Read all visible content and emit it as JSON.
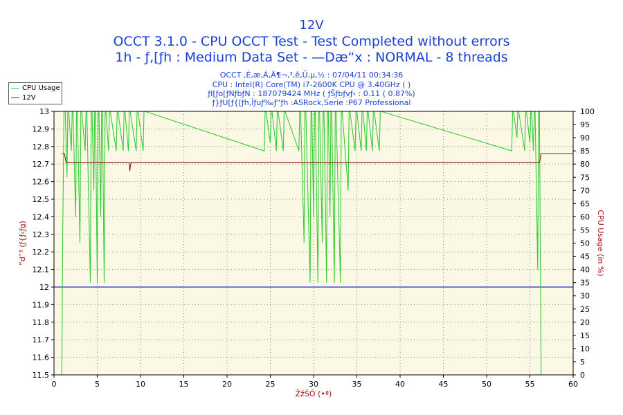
{
  "header": {
    "title": "12V",
    "line2": "OCCT 3.1.0 - CPU OCCT Test - Test Completed without errors",
    "line3": "1h - ƒ‚[ƒh : Medium Data Set - —Dæ“x : NORMAL - 8 threads",
    "sub1": "OCCT ‚É‚æ‚Á‚Ä¶¬‚³‚ê‚Ü‚µ‚½ : 07/04/11 00:34:36",
    "sub2": "CPU : Intel(R) Core(TM) i7-2600K CPU @ 3.40GHz (  )",
    "sub3": "ƒI[ƒo[ƒNƒbƒN : 187079424 MHz ( ƒŠƒbƒvƒ‹ : 0.11 ( 0.87%)",
    "sub4": "ƒ}ƒU[ƒ{[ƒh‚Ìƒuƒ‰ƒ“ƒh :ASRock,Serie :P67 Professional"
  },
  "legend": {
    "items": [
      {
        "label": "CPU Usage",
        "color": "#33cc33"
      },
      {
        "label": "12V",
        "color": "#8b1a1a"
      }
    ]
  },
  "colors": {
    "plot_bg": "#fbf8e6",
    "grid": "#7f9a5a",
    "title": "#1a3fd6",
    "axis_label": "#a01010",
    "cpu": "#33cc33",
    "volt": "#8b1a1a",
    "ref": "#1f2fd0"
  },
  "chart_data": {
    "type": "line",
    "title": "12V",
    "xlabel": "ŽžŠÔ (•ª)",
    "ylabel": "“dˆ³ (ƒ{ƒ‹ƒg)",
    "y2label": "CPU Usage (in %)",
    "xlim": [
      0,
      60
    ],
    "ylim": [
      11.5,
      13
    ],
    "y2lim": [
      0,
      100
    ],
    "x_ticks": [
      "0",
      "5",
      "10",
      "15",
      "20",
      "25",
      "30",
      "35",
      "40",
      "45",
      "50",
      "55",
      "60"
    ],
    "y_ticks": [
      "11.5",
      "11.6",
      "11.7",
      "11.8",
      "11.9",
      "12",
      "12.1",
      "12.2",
      "12.3",
      "12.4",
      "12.5",
      "12.6",
      "12.7",
      "12.8",
      "12.9",
      "13"
    ],
    "y2_ticks": [
      "0",
      "5",
      "10",
      "15",
      "20",
      "25",
      "30",
      "35",
      "40",
      "45",
      "50",
      "55",
      "60",
      "65",
      "70",
      "75",
      "80",
      "85",
      "90",
      "95",
      "100"
    ],
    "grid": true,
    "reference_line": 12,
    "series": [
      {
        "name": "CPU Usage",
        "axis": "right",
        "x": [
          0.9,
          1.0,
          1.15,
          1.3,
          1.5,
          1.6,
          1.7,
          2.0,
          2.1,
          2.2,
          2.5,
          2.6,
          2.7,
          3.0,
          3.1,
          3.2,
          3.6,
          3.7,
          3.8,
          4.2,
          4.3,
          4.4,
          4.6,
          4.7,
          4.8,
          5.0,
          5.1,
          5.2,
          5.4,
          5.5,
          5.6,
          5.8,
          5.9,
          6.0,
          6.3,
          6.4,
          6.5,
          7.2,
          7.3,
          7.4,
          8.0,
          8.1,
          8.2,
          8.6,
          8.7,
          8.8,
          9.5,
          9.6,
          9.7,
          10.3,
          10.4,
          10.5,
          24.3,
          24.4,
          24.5,
          25.0,
          25.1,
          25.2,
          25.7,
          25.8,
          25.9,
          26.5,
          26.6,
          26.7,
          28.3,
          28.4,
          28.5,
          28.9,
          29.0,
          29.1,
          29.6,
          29.7,
          29.8,
          30.0,
          30.1,
          30.2,
          30.5,
          30.6,
          30.7,
          31.0,
          31.1,
          31.2,
          31.5,
          31.6,
          31.7,
          31.9,
          32.0,
          32.1,
          32.4,
          32.5,
          32.6,
          33.1,
          33.2,
          33.3,
          34.0,
          34.1,
          34.2,
          34.8,
          34.9,
          35.0,
          35.5,
          35.6,
          35.7,
          36.1,
          36.2,
          36.3,
          36.8,
          36.9,
          37.0,
          37.6,
          37.7,
          37.8,
          52.9,
          53.0,
          53.1,
          53.5,
          53.6,
          53.7,
          54.4,
          54.5,
          54.6,
          55.0,
          55.1,
          55.2,
          55.4,
          55.5,
          55.6,
          55.9,
          56.0,
          56.1,
          56.3,
          60.0
        ],
        "y": [
          0,
          50,
          100,
          100,
          75,
          100,
          100,
          85,
          100,
          100,
          60,
          100,
          100,
          50,
          100,
          100,
          85,
          100,
          100,
          35,
          100,
          100,
          70,
          100,
          100,
          35,
          100,
          100,
          60,
          100,
          100,
          35,
          100,
          100,
          85,
          100,
          100,
          85,
          100,
          100,
          85,
          100,
          100,
          85,
          100,
          100,
          85,
          100,
          100,
          85,
          100,
          100,
          85,
          100,
          100,
          88,
          100,
          100,
          85,
          100,
          100,
          85,
          100,
          100,
          85,
          100,
          100,
          50,
          100,
          100,
          35,
          100,
          100,
          60,
          100,
          100,
          35,
          100,
          100,
          50,
          100,
          100,
          35,
          100,
          100,
          60,
          100,
          100,
          35,
          100,
          100,
          35,
          100,
          100,
          70,
          100,
          100,
          85,
          100,
          100,
          85,
          100,
          100,
          85,
          100,
          100,
          85,
          100,
          100,
          85,
          100,
          100,
          85,
          100,
          100,
          90,
          100,
          100,
          85,
          100,
          100,
          88,
          100,
          100,
          85,
          100,
          100,
          40,
          100,
          100,
          0,
          0
        ]
      },
      {
        "name": "12V",
        "axis": "left",
        "x": [
          0.9,
          1.2,
          1.4,
          8.5,
          8.7,
          8.75,
          8.9,
          9.0,
          30.0,
          56.1,
          56.2,
          56.3,
          60.0
        ],
        "y": [
          12.76,
          12.76,
          12.71,
          12.71,
          12.71,
          12.66,
          12.71,
          12.71,
          12.71,
          12.71,
          12.73,
          12.76,
          12.76
        ]
      }
    ]
  }
}
